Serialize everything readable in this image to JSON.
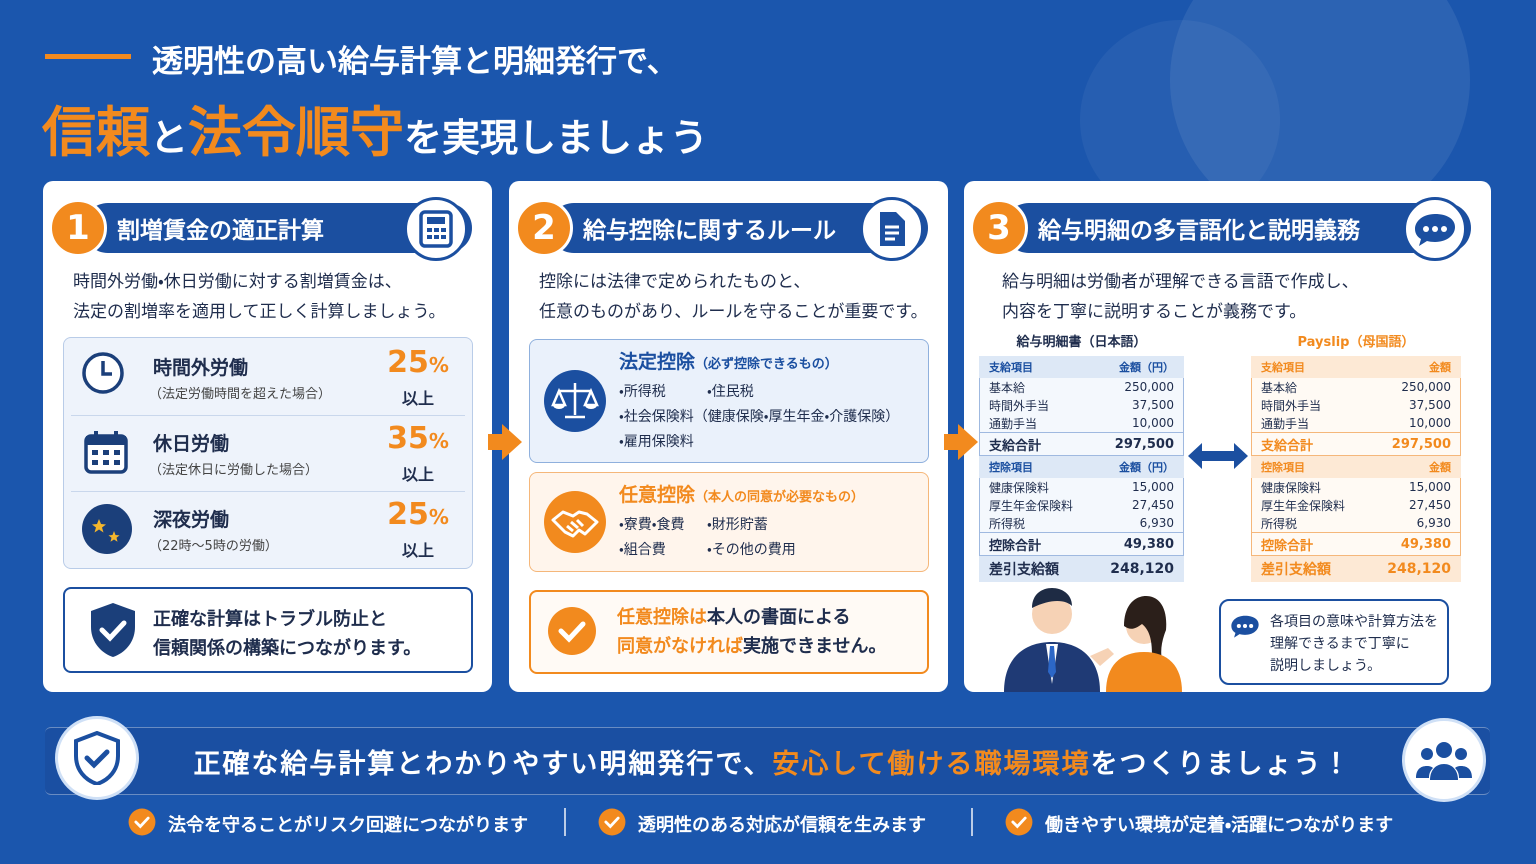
{
  "header": {
    "lead": "透明性の高い給与計算と明細発行で、",
    "title": [
      {
        "text": "信頼",
        "highlight": true
      },
      {
        "text": "と",
        "highlight": false
      },
      {
        "text": "法令順守",
        "highlight": true
      },
      {
        "text": "を実現しましょう",
        "highlight": false
      }
    ]
  },
  "panels": [
    {
      "number": "1",
      "title": "割増賃金の適正計算",
      "description": [
        "時間外労働・休日労働に対する割増賃金は、",
        "法定の割増率を適用して正しく計算しましょう。"
      ],
      "items": [
        {
          "label": "時間外労働",
          "note": "（法定労働時間を超えた場合）",
          "rate": "25",
          "unit": "%",
          "suffix": "以上"
        },
        {
          "label": "休日労働",
          "note": "（法定休日に労働した場合）",
          "rate": "35",
          "unit": "%",
          "suffix": "以上"
        },
        {
          "label": "深夜労働",
          "note": "（22時〜5時の労働）",
          "rate": "25",
          "unit": "%",
          "suffix": "以上"
        }
      ],
      "callout": [
        "正確な計算はトラブル防止と",
        "信頼関係の構築につながります。"
      ]
    },
    {
      "number": "2",
      "title": "給与控除に関するルール",
      "description": [
        "控除には法律で定められたものと、",
        "任意のものがあり、ルールを守ることが重要です。"
      ],
      "statutory": {
        "title": "法定控除",
        "sub": "（必ず控除できるもの）",
        "rows": [
          [
            "・所得税",
            "・住民税"
          ],
          [
            "・社会保険料（健康保険・厚生年金・介護保険）"
          ],
          [
            "・雇用保険料"
          ]
        ]
      },
      "voluntary": {
        "title": "任意控除",
        "sub": "（本人の同意が必要なもの）",
        "rows": [
          [
            "・寮費・食費",
            "・財形貯蓄"
          ],
          [
            "・組合費",
            "・その他の費用"
          ]
        ]
      },
      "callout": [
        [
          {
            "text": "任意控除は",
            "highlight": true
          },
          {
            "text": "本人の書面による",
            "highlight": false
          }
        ],
        [
          {
            "text": "同意がなければ",
            "highlight": true
          },
          {
            "text": "実施できません。",
            "highlight": false
          }
        ]
      ]
    },
    {
      "number": "3",
      "title": "給与明細の多言語化と説明義務",
      "description": [
        "給与明細は労働者が理解できる言語で作成し、",
        "内容を丁寧に説明することが義務です。"
      ],
      "payslips": [
        {
          "caption": "給与明細書（日本語）",
          "pay_header": [
            "支給項目",
            "金額（円）"
          ],
          "pay_rows": [
            [
              "基本給",
              "250,000"
            ],
            [
              "時間外手当",
              "37,500"
            ],
            [
              "通勤手当",
              "10,000"
            ]
          ],
          "pay_total": [
            "支給合計",
            "297,500"
          ],
          "ded_header": [
            "控除項目",
            "金額（円）"
          ],
          "ded_rows": [
            [
              "健康保険料",
              "15,000"
            ],
            [
              "厚生年金保険料",
              "27,450"
            ],
            [
              "所得税",
              "6,930"
            ]
          ],
          "ded_total": [
            "控除合計",
            "49,380"
          ],
          "net": [
            "差引支給額",
            "248,120"
          ]
        },
        {
          "caption": "Payslip（母国語）",
          "pay_header": [
            "支給項目",
            "金額"
          ],
          "pay_rows": [
            [
              "基本給",
              "250,000"
            ],
            [
              "時間外手当",
              "37,500"
            ],
            [
              "通勤手当",
              "10,000"
            ]
          ],
          "pay_total": [
            "支給合計",
            "297,500"
          ],
          "ded_header": [
            "控除項目",
            "金額"
          ],
          "ded_rows": [
            [
              "健康保険料",
              "15,000"
            ],
            [
              "厚生年金保険料",
              "27,450"
            ],
            [
              "所得税",
              "6,930"
            ]
          ],
          "ded_total": [
            "控除合計",
            "49,380"
          ],
          "net": [
            "差引支給額",
            "248,120"
          ]
        }
      ],
      "speech": [
        "各項目の意味や計算方法を",
        "理解できるまで丁寧に",
        "説明しましょう。"
      ]
    }
  ],
  "footer": {
    "message": [
      {
        "text": "正確な給与計算とわかりやすい明細発行で、",
        "highlight": false
      },
      {
        "text": "安心して働ける職場環境",
        "highlight": true
      },
      {
        "text": "をつくりましょう！",
        "highlight": false
      }
    ],
    "points": [
      "法令を守ることがリスク回避につながります",
      "透明性のある対応が信頼を生みます",
      "働きやすい環境が定着・活躍につながります"
    ]
  }
}
